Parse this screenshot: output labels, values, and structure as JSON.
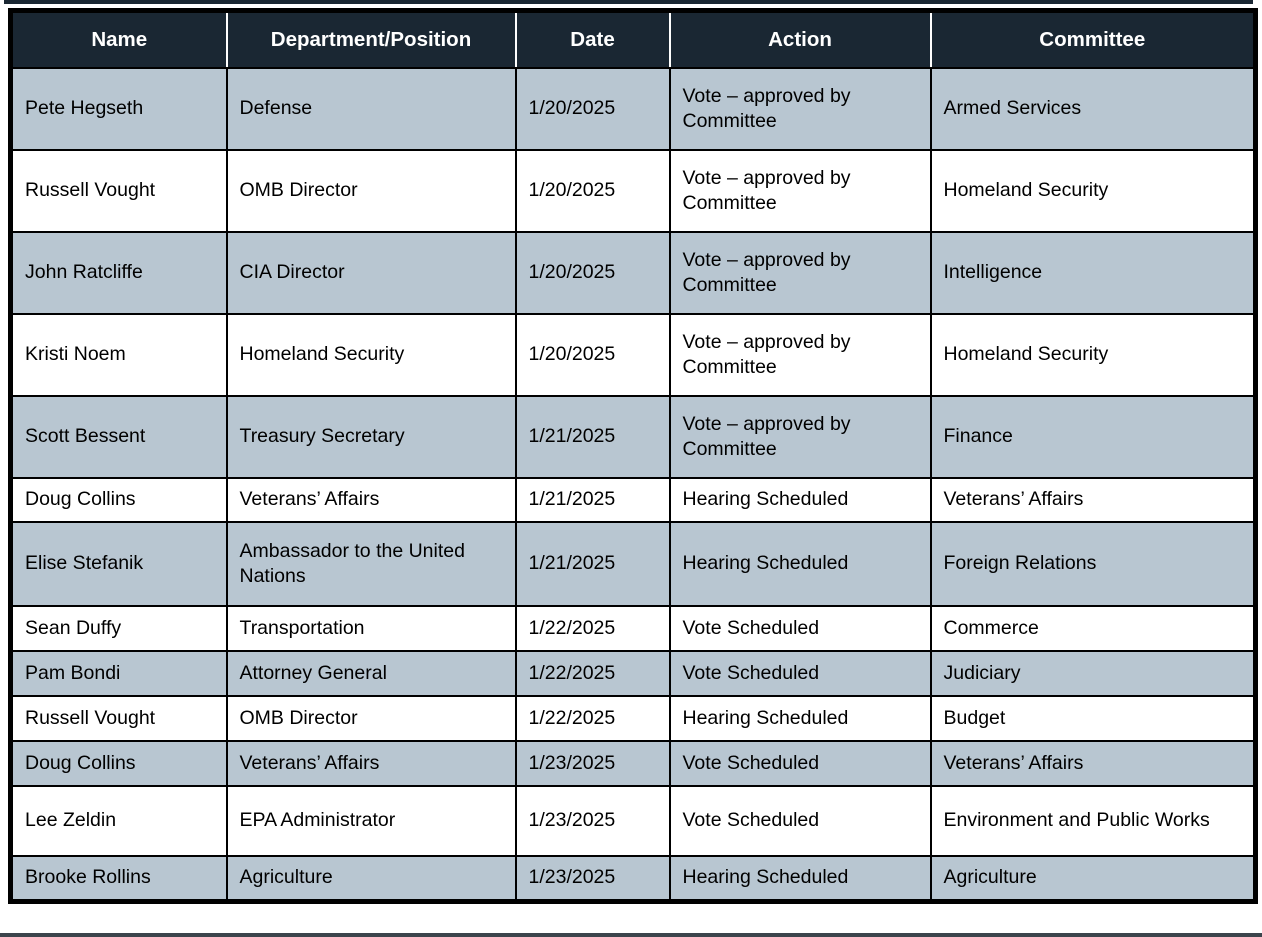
{
  "colors": {
    "header_bg": "#1a2733",
    "header_text": "#ffffff",
    "row_alt_bg": "#b8c6d1",
    "row_bg": "#ffffff",
    "border": "#000000",
    "text": "#000000"
  },
  "table": {
    "columns": [
      {
        "key": "name",
        "label": "Name"
      },
      {
        "key": "department",
        "label": "Department/Position"
      },
      {
        "key": "date",
        "label": "Date"
      },
      {
        "key": "action",
        "label": "Action"
      },
      {
        "key": "committee",
        "label": "Committee"
      }
    ],
    "rows": [
      {
        "name": "Pete Hegseth",
        "department": "Defense",
        "date": "1/20/2025",
        "action": "Vote – approved by Committee",
        "committee": "Armed Services"
      },
      {
        "name": "Russell Vought",
        "department": "OMB Director",
        "date": "1/20/2025",
        "action": "Vote – approved by Committee",
        "committee": "Homeland Security"
      },
      {
        "name": "John Ratcliffe",
        "department": "CIA Director",
        "date": "1/20/2025",
        "action": "Vote – approved by Committee",
        "committee": "Intelligence"
      },
      {
        "name": "Kristi Noem",
        "department": "Homeland Security",
        "date": "1/20/2025",
        "action": "Vote – approved by Committee",
        "committee": "Homeland Security"
      },
      {
        "name": "Scott Bessent",
        "department": "Treasury Secretary",
        "date": "1/21/2025",
        "action": "Vote – approved by Committee",
        "committee": "Finance"
      },
      {
        "name": "Doug Collins",
        "department": "Veterans’ Affairs",
        "date": "1/21/2025",
        "action": "Hearing Scheduled",
        "committee": "Veterans’ Affairs"
      },
      {
        "name": "Elise Stefanik",
        "department": "Ambassador to the United Nations",
        "date": "1/21/2025",
        "action": "Hearing Scheduled",
        "committee": "Foreign Relations"
      },
      {
        "name": "Sean Duffy",
        "department": "Transportation",
        "date": "1/22/2025",
        "action": "Vote Scheduled",
        "committee": "Commerce"
      },
      {
        "name": "Pam Bondi",
        "department": "Attorney General",
        "date": "1/22/2025",
        "action": "Vote Scheduled",
        "committee": "Judiciary"
      },
      {
        "name": "Russell Vought",
        "department": "OMB Director",
        "date": "1/22/2025",
        "action": "Hearing Scheduled",
        "committee": "Budget"
      },
      {
        "name": "Doug Collins",
        "department": "Veterans’ Affairs",
        "date": "1/23/2025",
        "action": "Vote Scheduled",
        "committee": "Veterans’ Affairs"
      },
      {
        "name": "Lee Zeldin",
        "department": "EPA Administrator",
        "date": "1/23/2025",
        "action": "Vote Scheduled",
        "committee": "Environment and Public Works"
      },
      {
        "name": "Brooke Rollins",
        "department": "Agriculture",
        "date": "1/23/2025",
        "action": "Hearing Scheduled",
        "committee": "Agriculture"
      }
    ]
  }
}
